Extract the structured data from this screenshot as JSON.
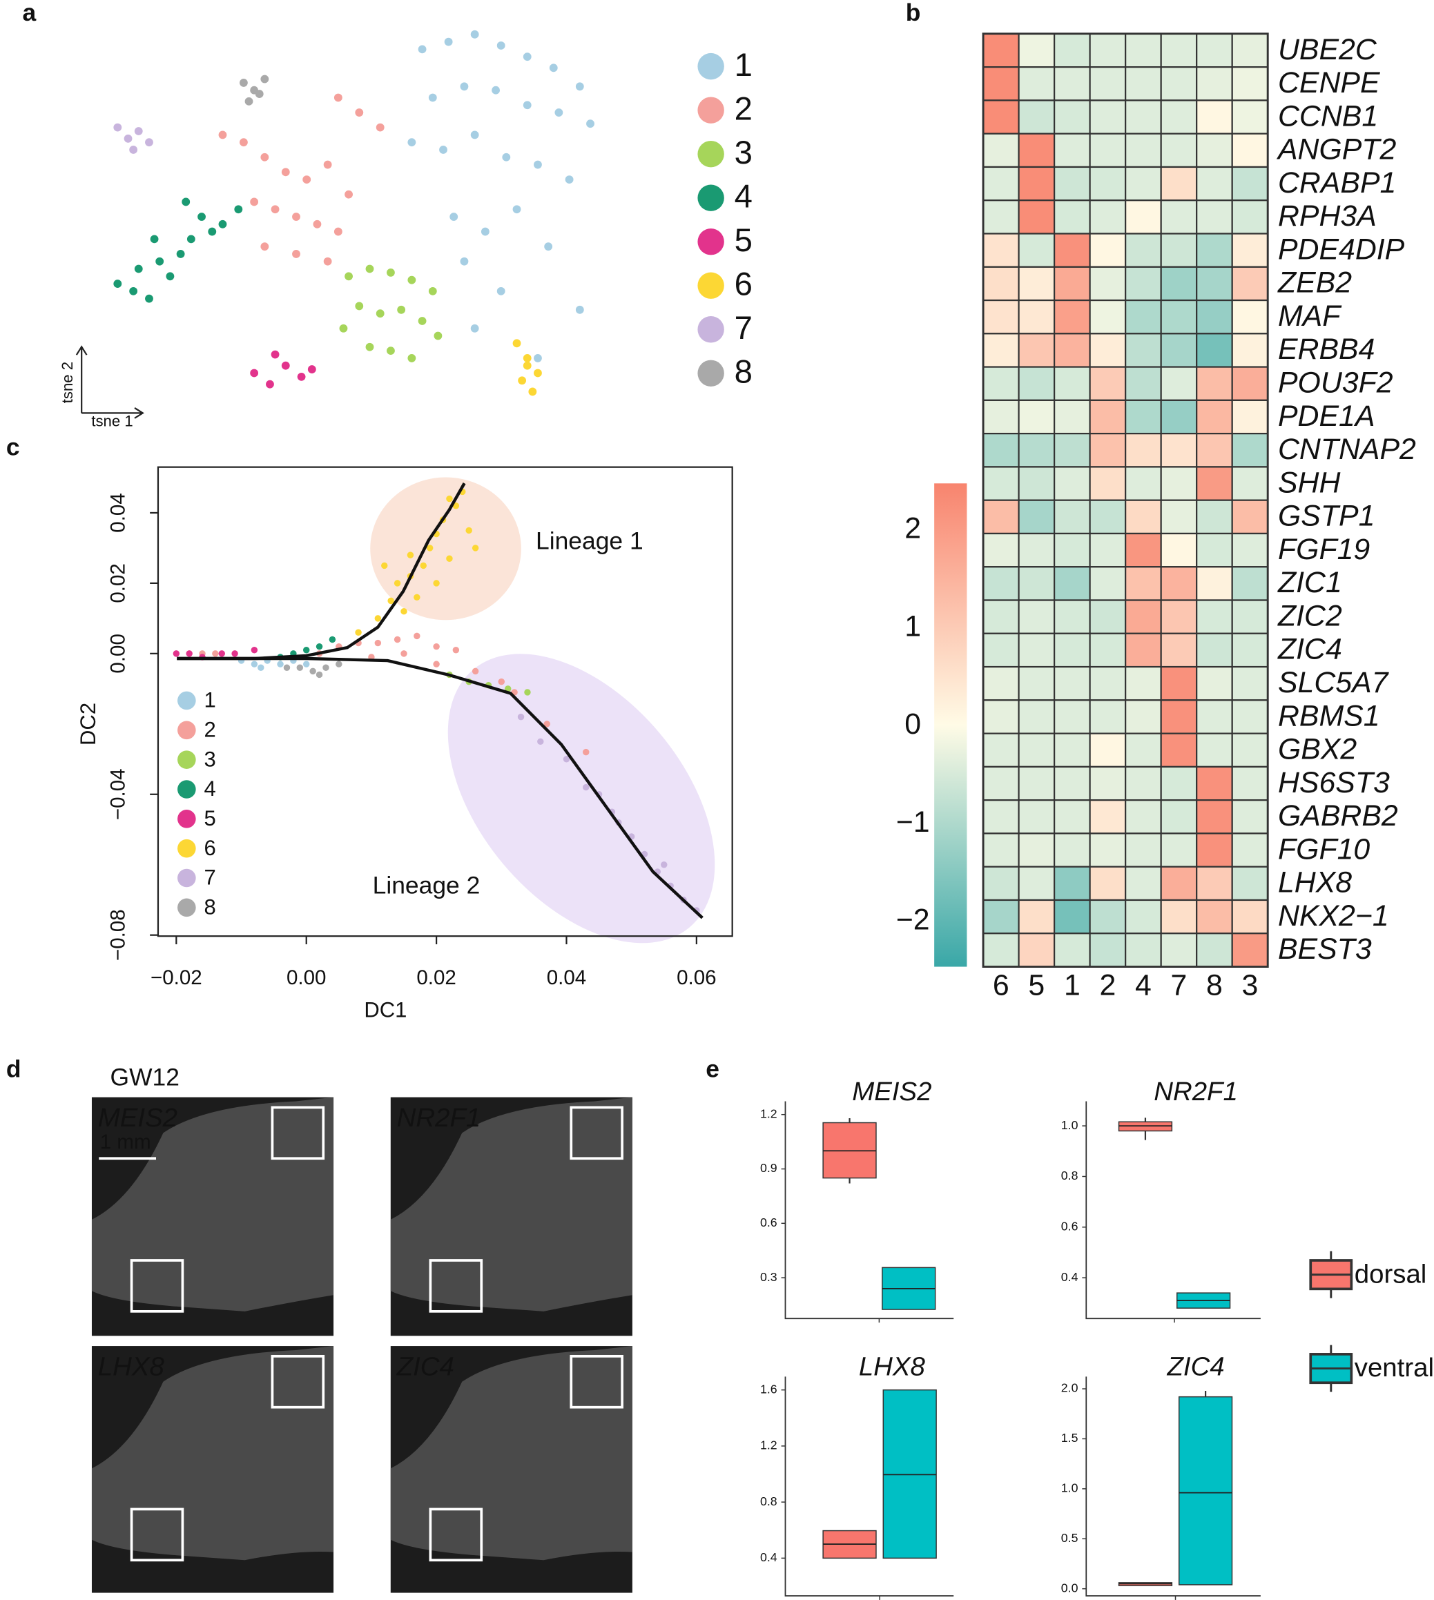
{
  "panel_labels": [
    "a",
    "b",
    "c",
    "d",
    "e"
  ],
  "chart_data": [
    {
      "type": "scatter",
      "xlabel": "tsne 1",
      "ylabel": "tsne 2",
      "xlim": [
        0,
        100
      ],
      "ylim": [
        0,
        100
      ],
      "series": [
        {
          "name": "1",
          "color": "#a6cee3",
          "x": [
            60,
            65,
            70,
            75,
            80,
            85,
            90,
            62,
            68,
            74,
            80,
            86,
            92,
            58,
            64,
            70,
            76,
            82,
            88,
            66,
            72,
            78,
            84,
            68,
            75,
            90,
            70,
            82
          ],
          "values": [
            95,
            97,
            99,
            96,
            93,
            90,
            85,
            82,
            85,
            84,
            80,
            78,
            75,
            70,
            68,
            72,
            66,
            64,
            60,
            50,
            46,
            52,
            42,
            38,
            30,
            25,
            20,
            12
          ]
        },
        {
          "name": "2",
          "color": "#f4a09b",
          "x": [
            44,
            48,
            52,
            22,
            26,
            30,
            34,
            38,
            42,
            28,
            32,
            36,
            40,
            44,
            30,
            36,
            42,
            46
          ],
          "values": [
            82,
            78,
            74,
            72,
            70,
            66,
            62,
            60,
            64,
            54,
            52,
            50,
            48,
            46,
            42,
            40,
            38,
            56
          ]
        },
        {
          "name": "3",
          "color": "#a6d55a",
          "x": [
            46,
            50,
            54,
            58,
            62,
            48,
            52,
            56,
            60,
            50,
            54,
            58,
            45,
            63
          ],
          "values": [
            34,
            36,
            35,
            33,
            30,
            26,
            24,
            25,
            22,
            15,
            14,
            12,
            20,
            18
          ]
        },
        {
          "name": "4",
          "color": "#1a9a72",
          "x": [
            2,
            5,
            8,
            6,
            10,
            14,
            12,
            16,
            20,
            18,
            22,
            25,
            9,
            15
          ],
          "values": [
            32,
            30,
            28,
            36,
            38,
            40,
            34,
            44,
            46,
            50,
            48,
            52,
            44,
            54
          ]
        },
        {
          "name": "5",
          "color": "#e2338c",
          "x": [
            28,
            31,
            34,
            37,
            39,
            32
          ],
          "values": [
            8,
            5,
            10,
            7,
            9,
            13
          ]
        },
        {
          "name": "6",
          "color": "#fcd734",
          "x": [
            78,
            80,
            82,
            79,
            81,
            80
          ],
          "values": [
            16,
            12,
            8,
            6,
            3,
            10
          ]
        },
        {
          "name": "7",
          "color": "#c8b4dd",
          "x": [
            2,
            4,
            6,
            8,
            5
          ],
          "values": [
            74,
            71,
            73,
            70,
            68
          ]
        },
        {
          "name": "8",
          "color": "#a9a9a9",
          "x": [
            26,
            28,
            30,
            27,
            29
          ],
          "values": [
            86,
            84,
            87,
            81,
            83
          ]
        }
      ]
    },
    {
      "type": "heatmap",
      "x_categories": [
        "6",
        "5",
        "1",
        "2",
        "4",
        "7",
        "8",
        "3"
      ],
      "y_categories": [
        "UBE2C",
        "CENPE",
        "CCNB1",
        "ANGPT2",
        "CRABP1",
        "RPH3A",
        "PDE4DIP",
        "ZEB2",
        "MAF",
        "ERBB4",
        "POU3F2",
        "PDE1A",
        "CNTNAP2",
        "SHH",
        "GSTP1",
        "FGF19",
        "ZIC1",
        "ZIC2",
        "ZIC4",
        "SLC5A7",
        "RBMS1",
        "GBX2",
        "HS6ST3",
        "GABRB2",
        "FGF10",
        "LHX8",
        "NKX2−1",
        "BEST3"
      ],
      "values": [
        [
          2.3,
          -0.2,
          -0.5,
          -0.4,
          -0.4,
          -0.4,
          -0.4,
          -0.3
        ],
        [
          2.3,
          -0.4,
          -0.4,
          -0.4,
          -0.4,
          -0.4,
          -0.3,
          -0.2
        ],
        [
          2.3,
          -0.6,
          -0.5,
          -0.4,
          -0.4,
          -0.4,
          0.1,
          -0.2
        ],
        [
          -0.3,
          2.3,
          -0.4,
          -0.4,
          -0.4,
          -0.4,
          -0.3,
          0.1
        ],
        [
          -0.4,
          2.3,
          -0.6,
          -0.5,
          -0.4,
          0.6,
          -0.4,
          -0.7
        ],
        [
          -0.4,
          2.3,
          -0.5,
          -0.4,
          0.1,
          -0.4,
          -0.4,
          -0.5
        ],
        [
          0.5,
          -0.5,
          2.2,
          0.1,
          -0.6,
          -0.6,
          -1.0,
          0.3
        ],
        [
          0.6,
          0.3,
          1.7,
          -0.3,
          -0.7,
          -1.2,
          -1.1,
          1.0
        ],
        [
          0.5,
          0.4,
          1.9,
          -0.2,
          -1.0,
          -1.0,
          -1.3,
          0.1
        ],
        [
          0.3,
          1.1,
          1.5,
          0.3,
          -0.8,
          -1.1,
          -1.7,
          0.2
        ],
        [
          -0.5,
          -0.7,
          -0.5,
          1.0,
          -0.8,
          -0.4,
          1.3,
          1.6
        ],
        [
          -0.3,
          -0.2,
          -0.3,
          1.3,
          -1.0,
          -1.3,
          1.4,
          0.2
        ],
        [
          -1.0,
          -0.9,
          -0.8,
          1.2,
          0.6,
          0.5,
          1.1,
          -1.0
        ],
        [
          -0.5,
          -0.6,
          -0.4,
          0.6,
          -0.4,
          -0.3,
          2.0,
          -0.4
        ],
        [
          1.3,
          -1.1,
          -0.6,
          -0.7,
          0.7,
          -0.3,
          -0.6,
          1.3
        ],
        [
          -0.3,
          -0.4,
          -0.5,
          -0.4,
          2.1,
          0.1,
          -0.5,
          -0.4
        ],
        [
          -0.7,
          -0.6,
          -1.1,
          -0.4,
          1.2,
          1.5,
          0.2,
          -0.8
        ],
        [
          -0.5,
          -0.4,
          -0.5,
          -0.6,
          1.7,
          1.1,
          -0.5,
          -0.5
        ],
        [
          -0.5,
          -0.4,
          -0.5,
          -0.5,
          1.6,
          1.0,
          -0.6,
          -0.5
        ],
        [
          -0.3,
          -0.4,
          -0.4,
          -0.4,
          -0.3,
          2.2,
          -0.3,
          -0.4
        ],
        [
          -0.3,
          -0.4,
          -0.4,
          -0.4,
          -0.3,
          2.2,
          -0.4,
          -0.4
        ],
        [
          -0.4,
          -0.4,
          -0.4,
          0.1,
          -0.4,
          2.2,
          -0.4,
          -0.4
        ],
        [
          -0.4,
          -0.4,
          -0.4,
          -0.3,
          -0.4,
          -0.5,
          2.2,
          -0.4
        ],
        [
          -0.4,
          -0.4,
          -0.4,
          0.4,
          -0.4,
          -0.5,
          2.2,
          -0.4
        ],
        [
          -0.4,
          -0.3,
          -0.4,
          -0.3,
          -0.4,
          -0.4,
          2.2,
          -0.4
        ],
        [
          -0.6,
          -0.4,
          -1.4,
          0.6,
          -0.4,
          1.6,
          1.0,
          -0.6
        ],
        [
          -1.1,
          0.6,
          -1.7,
          -0.8,
          -0.5,
          0.6,
          1.3,
          0.7
        ],
        [
          -0.5,
          0.8,
          -0.5,
          -0.7,
          -0.5,
          -0.4,
          -0.6,
          2.0
        ]
      ],
      "colorscale": [
        "#39a7a7",
        "#fffbe6",
        "#f8846e"
      ],
      "colorlim": [
        -2.46,
        2.48
      ],
      "colorticks": [
        2,
        1,
        0,
        {
          "value": -1,
          "label": "−1"
        },
        {
          "value": -2,
          "label": "−2"
        }
      ]
    },
    {
      "type": "scatter",
      "xlabel": "DC1",
      "ylabel": "DC2",
      "xlim": [
        -0.0228,
        0.0655
      ],
      "ylim": [
        -0.0803,
        0.053
      ],
      "xticks": [
        {
          "value": -0.02,
          "label": "−0.02"
        },
        {
          "value": 0,
          "label": "0.00"
        },
        0.02,
        0.04,
        0.06
      ],
      "yticks": [
        0.04,
        0.02,
        {
          "value": 0,
          "label": "0.00"
        },
        {
          "value": -0.04,
          "label": "−0.04"
        },
        {
          "value": -0.08,
          "label": "−0.08"
        }
      ],
      "annotations": [
        "Lineage 1",
        "Lineage 2"
      ],
      "series": [
        {
          "name": "1",
          "color": "#a6cee3",
          "x": [
            -0.01,
            -0.008,
            -0.006,
            -0.004,
            -0.002,
            0.0,
            -0.007
          ],
          "values": [
            -0.002,
            -0.003,
            -0.002,
            -0.003,
            -0.002,
            -0.003,
            -0.004
          ]
        },
        {
          "name": "2",
          "color": "#f4a09b",
          "x": [
            0.002,
            0.005,
            0.008,
            0.011,
            0.014,
            0.017,
            0.02,
            0.023,
            0.01,
            0.015,
            0.02,
            0.026,
            0.03,
            0.032,
            -0.016,
            -0.014,
            0.037,
            0.043
          ],
          "values": [
            0.0,
            0.002,
            0.003,
            0.003,
            0.004,
            0.005,
            0.002,
            0.001,
            -0.001,
            0.0,
            -0.003,
            -0.005,
            -0.008,
            -0.011,
            0.0,
            0.0,
            -0.02,
            -0.028
          ]
        },
        {
          "name": "3",
          "color": "#a6d55a",
          "x": [
            0.022,
            0.025,
            0.028,
            0.031,
            0.034
          ],
          "values": [
            -0.006,
            -0.008,
            -0.009,
            -0.01,
            -0.011
          ]
        },
        {
          "name": "4",
          "color": "#1a9a72",
          "x": [
            -0.004,
            -0.002,
            0.0,
            0.002,
            0.004
          ],
          "values": [
            -0.001,
            0.0,
            0.001,
            0.002,
            0.004
          ]
        },
        {
          "name": "5",
          "color": "#e2338c",
          "x": [
            -0.02,
            -0.018,
            -0.016,
            -0.013,
            -0.011,
            -0.008
          ],
          "values": [
            0.0,
            0.0,
            -0.001,
            0.0,
            0.0,
            0.001
          ]
        },
        {
          "name": "6",
          "color": "#fcd734",
          "x": [
            0.008,
            0.011,
            0.013,
            0.014,
            0.016,
            0.016,
            0.018,
            0.019,
            0.02,
            0.021,
            0.022,
            0.023,
            0.024,
            0.025,
            0.017,
            0.02,
            0.026,
            0.012,
            0.015,
            0.022
          ],
          "values": [
            0.006,
            0.01,
            0.015,
            0.02,
            0.022,
            0.028,
            0.025,
            0.03,
            0.034,
            0.038,
            0.027,
            0.042,
            0.046,
            0.035,
            0.016,
            0.02,
            0.03,
            0.025,
            0.012,
            0.044
          ]
        },
        {
          "name": "7",
          "color": "#c8b4dd",
          "x": [
            0.033,
            0.036,
            0.04,
            0.043,
            0.045,
            0.048,
            0.05,
            0.052,
            0.054,
            0.056,
            0.058,
            0.06,
            0.047,
            0.055
          ],
          "values": [
            -0.018,
            -0.025,
            -0.03,
            -0.038,
            -0.04,
            -0.048,
            -0.052,
            -0.057,
            -0.062,
            -0.066,
            -0.07,
            -0.073,
            -0.045,
            -0.06
          ]
        },
        {
          "name": "8",
          "color": "#a9a9a9",
          "x": [
            -0.003,
            -0.001,
            0.001,
            0.003,
            0.005,
            0.002
          ],
          "values": [
            -0.004,
            -0.004,
            -0.005,
            -0.004,
            -0.003,
            -0.006
          ]
        }
      ],
      "lines": [
        {
          "color": "#111111",
          "x": [
            -0.0199,
            -0.0078,
            0,
            0.0063,
            0.011,
            0.0149,
            0.0188,
            0.022,
            0.0243
          ],
          "values": [
            -0.0014,
            -0.0014,
            -0.0006,
            0.0017,
            0.0075,
            0.0177,
            0.0322,
            0.0409,
            0.0484
          ]
        },
        {
          "color": "#111111",
          "x": [
            -0.0199,
            0,
            0.0125,
            0.022,
            0.0314,
            0.0392,
            0.0471,
            0.0533,
            0.0609
          ],
          "values": [
            -0.0014,
            -0.0014,
            -0.002,
            -0.0061,
            -0.0113,
            -0.0258,
            -0.0461,
            -0.062,
            -0.0751
          ]
        }
      ]
    },
    {
      "type": "boxplot",
      "series": [
        {
          "name": "dorsal",
          "color": "#f8766d"
        },
        {
          "name": "ventral",
          "color": "#00bfc4"
        }
      ],
      "panels": [
        {
          "title": "MEIS2",
          "ylim": [
            0.075,
            1.273
          ],
          "yticks": [
            1.2,
            0.9,
            0.6,
            0.3
          ],
          "boxes": [
            [
              0.82,
              0.85,
              1.0,
              1.155,
              1.18
            ],
            [
              0.125,
              0.125,
              0.24,
              0.356,
              0.356
            ]
          ]
        },
        {
          "title": "NR2F1",
          "ylim": [
            0.239,
            1.097
          ],
          "yticks": [
            {
              "value": 1.0,
              "label": "1.0"
            },
            0.8,
            0.6,
            0.4
          ],
          "boxes": [
            [
              0.944,
              0.98,
              1.0,
              1.016,
              1.032
            ],
            [
              0.28,
              0.28,
              0.31,
              0.34,
              0.34
            ]
          ]
        },
        {
          "title": "LHX8",
          "ylim": [
            0.131,
            1.695
          ],
          "yticks": [
            1.6,
            1.2,
            0.8,
            0.4
          ],
          "boxes": [
            [
              0.4,
              0.4,
              0.5,
              0.596,
              0.596
            ],
            [
              0.4,
              0.4,
              0.996,
              1.6,
              1.6
            ]
          ]
        },
        {
          "title": "ZIC4",
          "ylim": [
            -0.071,
            2.122
          ],
          "yticks": [
            {
              "value": 2.0,
              "label": "2.0"
            },
            1.5,
            {
              "value": 1.0,
              "label": "1.0"
            },
            0.5,
            {
              "value": 0.0,
              "label": "0.0"
            }
          ],
          "boxes": [
            [
              0.031,
              0.031,
              0.05,
              0.061,
              0.061
            ],
            [
              0.04,
              0.04,
              0.96,
              1.92,
              1.98
            ]
          ]
        }
      ]
    }
  ],
  "images": {
    "title": "GW12",
    "scale_bar": "1 mm",
    "panels": [
      {
        "label": "MEIS2",
        "color": "#f2a7bd"
      },
      {
        "label": "NR2F1",
        "color": "#e3b5ec"
      },
      {
        "label": "LHX8",
        "color": "#f59a32"
      },
      {
        "label": "ZIC4",
        "color": "#f2624e"
      }
    ]
  }
}
